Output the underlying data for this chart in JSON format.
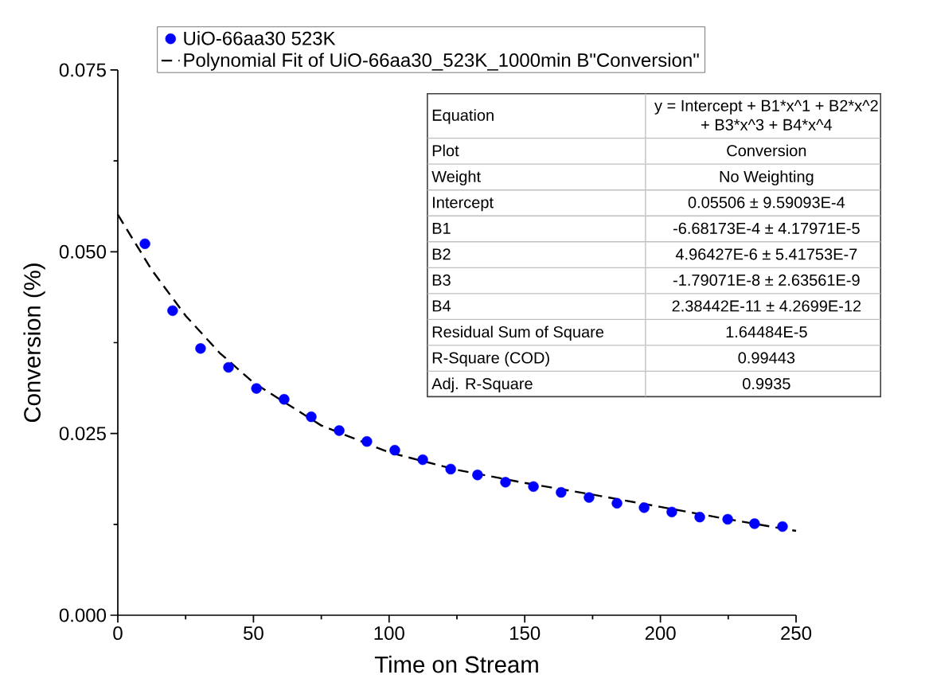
{
  "chart_data": {
    "type": "scatter",
    "xlabel": "Time on Stream",
    "ylabel": "Conversion (%)",
    "xlim": [
      0,
      250
    ],
    "xticks": [
      0,
      50,
      100,
      150,
      200,
      250
    ],
    "ylim": [
      0,
      0.075
    ],
    "yticks": [
      {
        "value": 0,
        "label": "0.000"
      },
      {
        "value": 0.025,
        "label": "0.025"
      },
      {
        "value": 0.05,
        "label": "0.050"
      },
      {
        "value": 0.075,
        "label": "0.075"
      }
    ],
    "legend": "top",
    "grid": false,
    "series": [
      {
        "name": "UiO-66aa30 523K",
        "marker": "circle",
        "color": "#0000ff",
        "x": [
          10.0,
          20.2,
          30.5,
          40.8,
          51.1,
          61.3,
          71.3,
          81.6,
          91.8,
          102.1,
          112.4,
          122.7,
          132.6,
          142.9,
          153.2,
          163.4,
          173.7,
          184.0,
          194.0,
          204.2,
          214.5,
          224.8,
          234.7,
          245.0
        ],
        "values": [
          0.0511,
          0.0419,
          0.0367,
          0.0341,
          0.0312,
          0.0297,
          0.0273,
          0.0254,
          0.0239,
          0.0227,
          0.0214,
          0.0201,
          0.0193,
          0.0183,
          0.0177,
          0.0169,
          0.0162,
          0.0154,
          0.0148,
          0.0142,
          0.0135,
          0.0132,
          0.0126,
          0.0122
        ]
      },
      {
        "name": "Polynomial Fit of UiO-66aa30_523K_1000min B\"Conversion\"",
        "type": "line",
        "line_style": "dashed",
        "marker": "none",
        "color": "#000000",
        "x": [
          0,
          12.5,
          25,
          37.5,
          50,
          75,
          100,
          125,
          150,
          175,
          200,
          225,
          250
        ],
        "values": [
          0.0551,
          0.0475,
          0.0412,
          0.0361,
          0.032,
          0.0261,
          0.0224,
          0.02,
          0.0182,
          0.0166,
          0.0149,
          0.0132,
          0.0116
        ]
      }
    ],
    "annotations": [
      "Equation",
      "y = Intercept + B1*x^1 + B2*x^2 + B3*x^3 + B4*x^4",
      "Plot",
      "Conversion",
      "Weight",
      "No Weighting",
      "Intercept",
      "0.05506 ± 9.59093E-4",
      "B1",
      "-6.68173E-4 ± 4.17971E-5",
      "B2",
      "4.96427E-6 ± 5.41753E-7",
      "B3",
      "-1.79071E-8 ± 2.63561E-9",
      "B4",
      "2.38442E-11 ± 4.2699E-12",
      "Residual Sum of Square",
      "1.64484E-5",
      "R-Square (COD)",
      "0.99443",
      "Adj. R-Square",
      "0.9935"
    ]
  }
}
